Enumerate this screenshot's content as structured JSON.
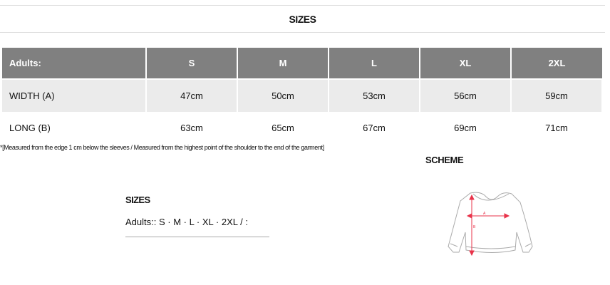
{
  "title": "SIZES",
  "table": {
    "headers": [
      "Adults:",
      "S",
      "M",
      "L",
      "XL",
      "2XL"
    ],
    "rows": [
      {
        "label": "WIDTH (A)",
        "values": [
          "47cm",
          "50cm",
          "53cm",
          "56cm",
          "59cm"
        ]
      },
      {
        "label": "LONG (B)",
        "values": [
          "63cm",
          "65cm",
          "67cm",
          "69cm",
          "71cm"
        ]
      }
    ]
  },
  "note": "*[Measured from the edge 1 cm below the sleeves / Measured from the highest point of the shoulder to the end of the garment]",
  "scheme": {
    "title": "SCHEME",
    "label_a": "A",
    "label_b": "B",
    "accent": "#e8334a"
  },
  "sizes_block": {
    "title": "SIZES",
    "text": "Adults:: S · M · L · XL · 2XL / :"
  }
}
